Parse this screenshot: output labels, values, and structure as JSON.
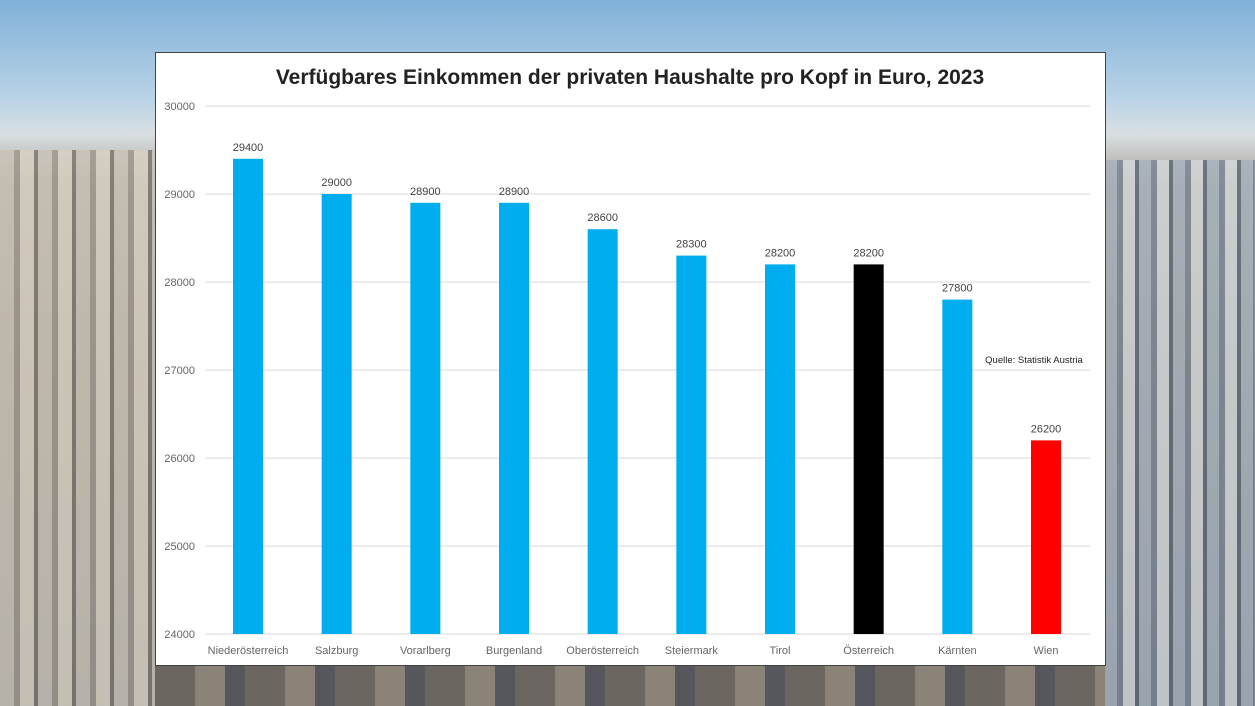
{
  "chart_data": {
    "type": "bar",
    "title": "Verfügbares Einkommen der privaten Haushalte pro Kopf in Euro, 2023",
    "categories": [
      "Niederösterreich",
      "Salzburg",
      "Vorarlberg",
      "Burgenland",
      "Oberösterreich",
      "Steiermark",
      "Tirol",
      "Österreich",
      "Kärnten",
      "Wien"
    ],
    "values": [
      29400,
      29000,
      28900,
      28900,
      28600,
      28300,
      28200,
      28200,
      27800,
      26200
    ],
    "colors": [
      "#00aeef",
      "#00aeef",
      "#00aeef",
      "#00aeef",
      "#00aeef",
      "#00aeef",
      "#00aeef",
      "#000000",
      "#00aeef",
      "#ff0000"
    ],
    "ylim": [
      24000,
      30000
    ],
    "yticks": [
      24000,
      25000,
      26000,
      27000,
      28000,
      29000,
      30000
    ],
    "grid": true,
    "xlabel": "",
    "ylabel": "",
    "annotation": "Quelle: Statistik Austria"
  }
}
